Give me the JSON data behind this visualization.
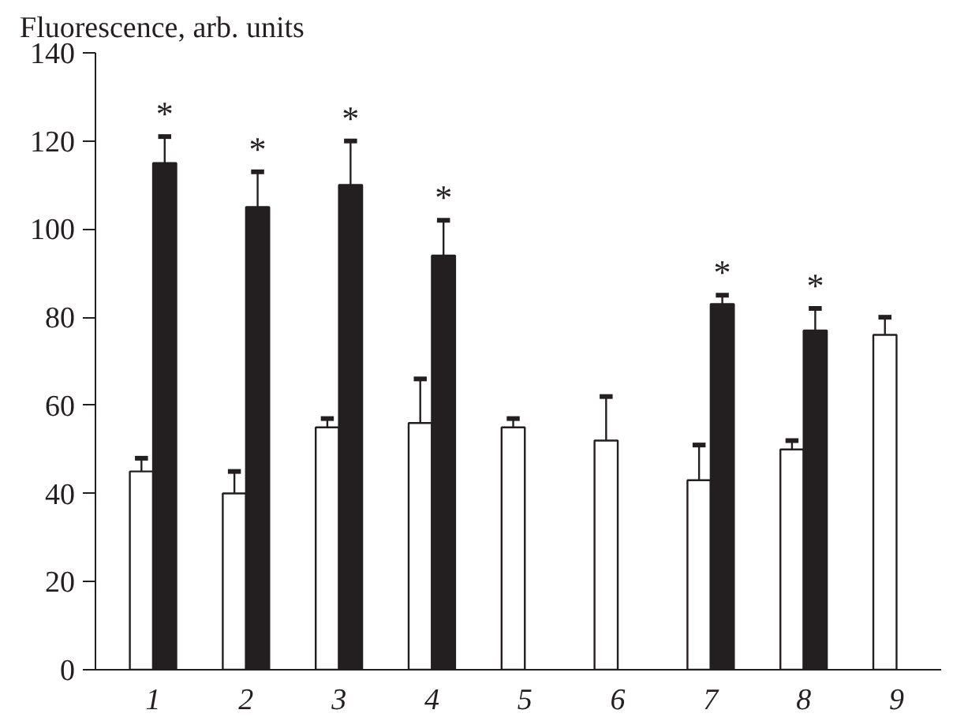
{
  "chart_data": {
    "type": "bar",
    "ylabel": "Fluorescence, arb. units",
    "categories": [
      "1",
      "2",
      "3",
      "4",
      "5",
      "6",
      "7",
      "8",
      "9"
    ],
    "series": [
      {
        "color": "#ffffff",
        "values": [
          45,
          40,
          55,
          56,
          55,
          52,
          43,
          50,
          76
        ],
        "errors": [
          [
            45,
            48
          ],
          [
            40,
            45
          ],
          [
            55,
            57
          ],
          [
            56,
            66
          ],
          [
            55,
            57
          ],
          [
            52,
            62
          ],
          [
            43,
            51
          ],
          [
            50,
            52
          ],
          [
            76,
            80
          ]
        ]
      },
      {
        "color": "#231f20",
        "values": [
          115,
          105,
          110,
          94,
          null,
          null,
          83,
          77,
          null
        ],
        "errors": [
          [
            115,
            121
          ],
          [
            105,
            113
          ],
          [
            110,
            120
          ],
          [
            94,
            102
          ],
          null,
          null,
          [
            83,
            85
          ],
          [
            77,
            82
          ],
          null
        ]
      }
    ],
    "annotations": [
      "*",
      "*",
      "*",
      "*",
      "*",
      "*"
    ],
    "ylim": [
      0,
      140
    ],
    "yticks": [
      0,
      20,
      40,
      60,
      80,
      100,
      120,
      140
    ],
    "grid": false
  }
}
